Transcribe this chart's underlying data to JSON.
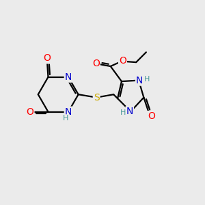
{
  "background_color": "#ebebeb",
  "atom_colors": {
    "C": "#000000",
    "N": "#0000cc",
    "O": "#ff0000",
    "S": "#ccaa00",
    "H": "#4a9a9a"
  },
  "bond_color": "#000000",
  "fig_width": 3.0,
  "fig_height": 3.0,
  "dpi": 100
}
